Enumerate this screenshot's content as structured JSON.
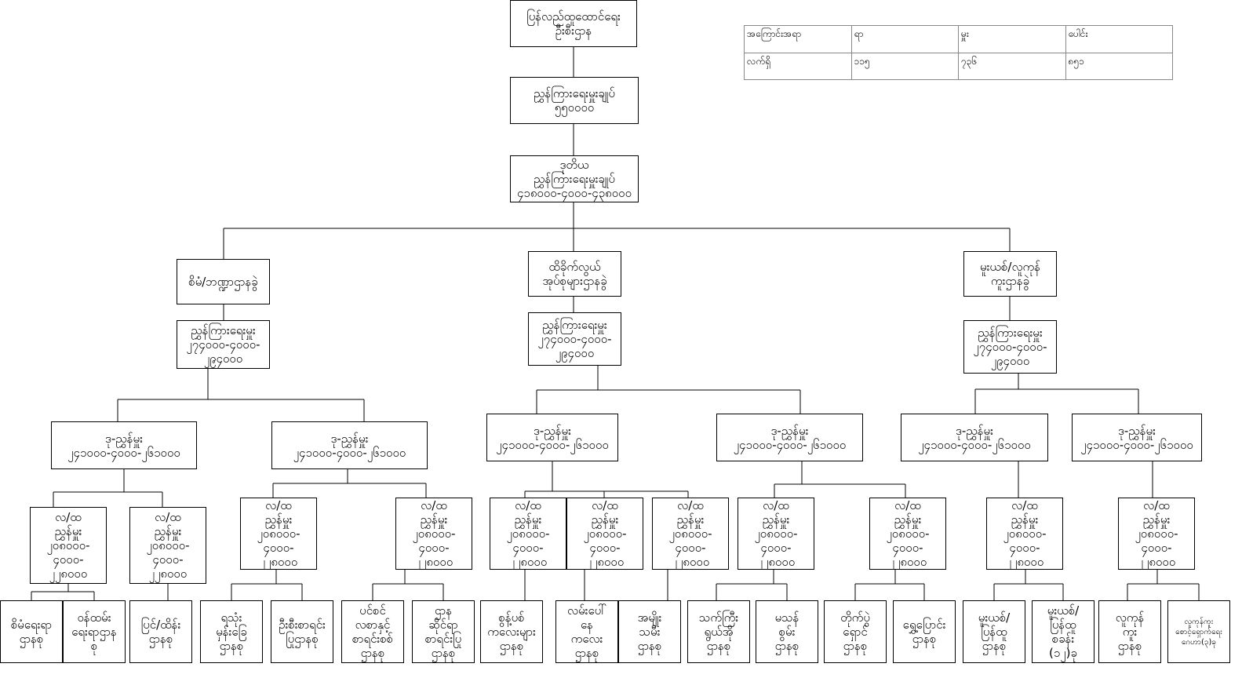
{
  "summary_table": {
    "header": [
      "အကြောင်းအရာ",
      "ရာ",
      "မှူး",
      "ပေါင်း"
    ],
    "row": [
      "လက်ရှိ",
      "၁၁၅",
      "၇၃၆",
      "၈၅၁"
    ]
  },
  "org": {
    "department": "ပြန်လည်ထူထောင်ရေး\nဦးစီးဌာန",
    "director_general": "ညွှန်ကြားရေးမှူးချုပ်\n၅၅၀၀၀၀",
    "deputy_director_general": "ဒုတိယ\nညွှန်ကြားရေးမှူးချုပ်\n၄၁၈၀၀၀-၄၀၀၀-၄၃၈၀၀၀",
    "divisions": [
      "စိမံ/ဘဏ္ဍာဌာနခွဲ",
      "ထိခိုက်လွယ်\nအုပ်စုများဌာနခွဲ",
      "မူးယစ်/လူကုန်\nကူးဌာနခွဲ"
    ],
    "director": "ညွှန်ကြားရေးမှူး\n၂၇၄၀၀၀-၄၀၀၀-\n၂၉၄၀၀၀",
    "deputy_director": "ဒု-ညွှန်မှူး\n၂၄၁၀၀၀-၄၀၀၀-၂၆၁၀၀၀",
    "assistant_director": "လ/ထ\nညွှန်မှူး\n၂၀၈၀၀၀-\n၄၀၀၀-\n၂၂၈၀၀၀",
    "sections": [
      "စိမံရေးရာ\nဌာနစု",
      "ဝန်ထမ်း\nရေးရာဌာန\nစု",
      "ပြင်/ထိန်း\nဌာနစု",
      "ရသုံး\nမှန်းခြေ\nဌာနစု",
      "ဦးစီးစာရင်း\nပြုဌာနစု",
      "ပင်စင်\nလစာနှင့်\nစာရင်းစစ်\nဌာနစု",
      "ဌာန\nဆိုင်ရာ\nစာရင်းပြု\nဌာနစု",
      "စွန့်ပစ်\nကလေးများ\nဌာနစု",
      "လမ်းပေါ်\nနေ\nကလေး\nဌာနစု",
      "အမျိုး\nသမီး\nဌာနစု",
      "သက်ကြီး\nရွယ်အို\nဌာနစု",
      "မသန်\nစွမ်း\nဌာနစု",
      "တိုက်ပွဲ\nရှောင်\nဌာနစု",
      "ရွှေ့ပြောင်း\nဌာနစု",
      "မူးယစ်/\nပြန်ထူ\nဌာနစု",
      "မူးယစ်/\nပြန်ထူ\nစခန်း\n(၁၂)ခု",
      "လူကုန်\nကူး\nဌာနစု",
      "လူကုန်ကူး\nစောင့်ရှောက်ရေး\nဂေဟာ(၃)ခု"
    ]
  }
}
